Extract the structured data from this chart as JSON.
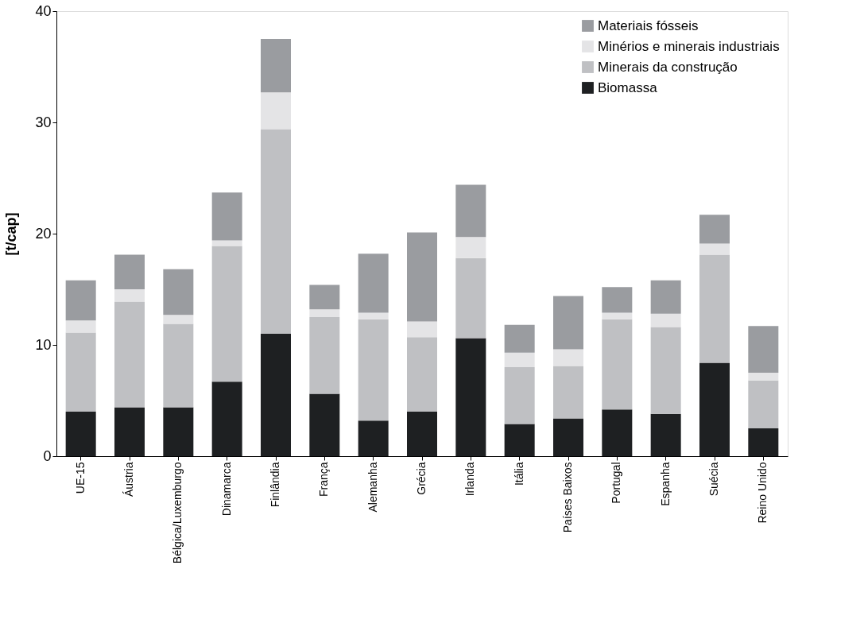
{
  "chart_data": {
    "type": "bar",
    "stacked": true,
    "ylabel": "[t/cap]",
    "categories": [
      "UE-15",
      "Áustria",
      "Bélgica/Luxemburgo",
      "Dinamarca",
      "Finlândia",
      "França",
      "Alemanha",
      "Grécia",
      "Irlanda",
      "Itália",
      "Países Baixos",
      "Portugal",
      "Espanha",
      "Suécia",
      "Reino Unido"
    ],
    "series": [
      {
        "name": "Biomassa",
        "color": "#1e2022",
        "values": [
          4.0,
          4.4,
          4.4,
          6.7,
          11.0,
          5.6,
          3.2,
          4.0,
          10.6,
          2.9,
          3.4,
          4.2,
          3.8,
          8.4,
          2.5
        ]
      },
      {
        "name": "Minerais da construção",
        "color": "#bfc0c3",
        "values": [
          7.1,
          9.5,
          7.5,
          12.2,
          18.4,
          6.9,
          9.1,
          6.7,
          7.2,
          5.1,
          4.7,
          8.1,
          7.8,
          9.7,
          4.3
        ]
      },
      {
        "name": "Minérios e minerais industriais",
        "color": "#e4e4e6",
        "values": [
          1.1,
          1.1,
          0.8,
          0.5,
          3.3,
          0.7,
          0.6,
          1.4,
          1.9,
          1.3,
          1.5,
          0.6,
          1.2,
          1.0,
          0.7
        ]
      },
      {
        "name": "Materiais fósseis",
        "color": "#9a9ca0",
        "values": [
          3.6,
          3.1,
          4.1,
          4.3,
          4.8,
          2.2,
          5.3,
          8.0,
          4.7,
          2.5,
          4.8,
          2.3,
          3.0,
          2.6,
          4.2
        ]
      }
    ],
    "ylim": [
      0,
      40
    ],
    "yticks": [
      0,
      10,
      20,
      30,
      40
    ],
    "grid": false,
    "legend": "top right"
  }
}
